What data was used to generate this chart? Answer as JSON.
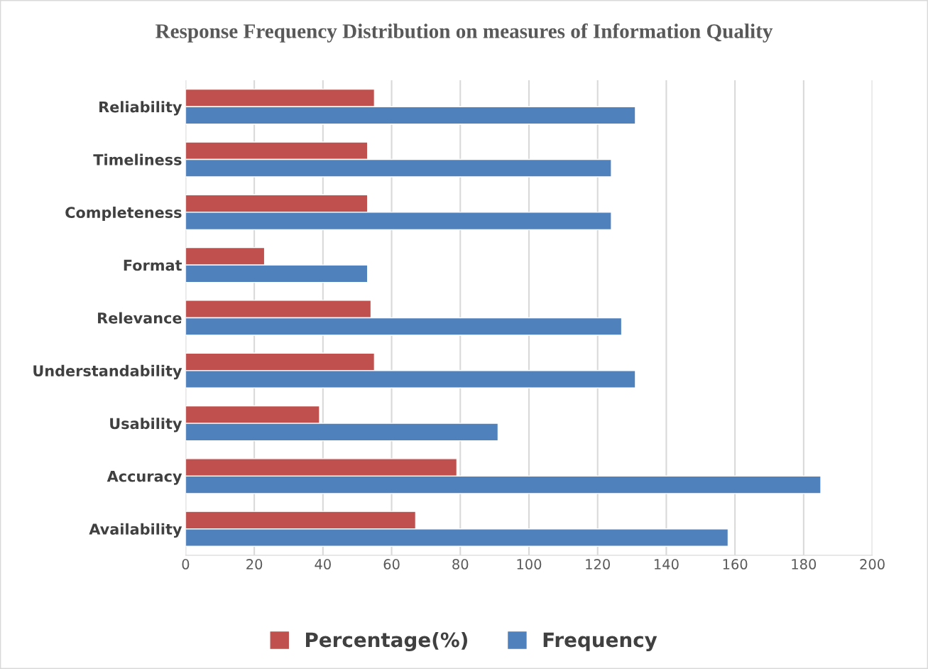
{
  "chart_data": {
    "type": "bar",
    "orientation": "horizontal",
    "title": "Response Frequency Distribution on measures of Information Quality",
    "categories": [
      "Reliability",
      "Timeliness",
      "Completeness",
      "Format",
      "Relevance",
      "Understandability",
      "Usability",
      "Accuracy",
      "Availability"
    ],
    "series": [
      {
        "name": "Percentage(%)",
        "color": "#c0504d",
        "values": [
          55,
          53,
          53,
          23,
          54,
          55,
          39,
          79,
          67
        ]
      },
      {
        "name": "Frequency",
        "color": "#4f81bd",
        "values": [
          131,
          124,
          124,
          53,
          127,
          131,
          91,
          185,
          158
        ]
      }
    ],
    "xlim": [
      0,
      200
    ],
    "xticks": [
      0,
      20,
      40,
      60,
      80,
      100,
      120,
      140,
      160,
      180,
      200
    ],
    "grid": "x",
    "legend": "bottom"
  }
}
